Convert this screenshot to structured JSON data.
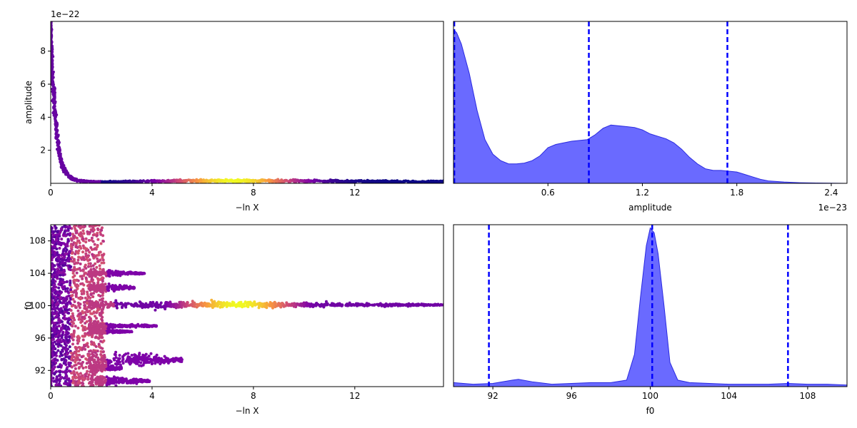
{
  "colors": {
    "trace_colormap": "plasma",
    "kde_fill": "#5555ff",
    "kde_edge": "#2a2ae0",
    "quantile_line": "#0000ff",
    "axes": "#000000"
  },
  "chart_data": [
    {
      "type": "scatter",
      "panel": "top-left",
      "xlabel": "−ln X",
      "ylabel": "amplitude",
      "offset_label": "1e−22",
      "xlim": [
        0,
        15.5
      ],
      "ylim": [
        0,
        9.8
      ],
      "xticks": [
        0,
        4,
        8,
        12
      ],
      "xtick_labels": [
        "0",
        "4",
        "8",
        "12"
      ],
      "yticks": [
        2,
        4,
        6,
        8
      ],
      "ytick_labels": [
        "2",
        "4",
        "6",
        "8"
      ],
      "color_by": "posterior weight (plasma colormap)",
      "curve": {
        "x": [
          0,
          0.05,
          0.1,
          0.15,
          0.2,
          0.3,
          0.4,
          0.5,
          0.7,
          0.9,
          1.2,
          1.6,
          2.0,
          3.0,
          4.0,
          5.0,
          6.0,
          7.0,
          8.0,
          9.0,
          10.0,
          11.0,
          12.0,
          13.0,
          14.0,
          15.5
        ],
        "y": [
          9.5,
          7.2,
          5.9,
          4.8,
          3.6,
          2.3,
          1.4,
          0.9,
          0.45,
          0.25,
          0.15,
          0.1,
          0.08,
          0.1,
          0.12,
          0.14,
          0.15,
          0.15,
          0.15,
          0.15,
          0.14,
          0.13,
          0.12,
          0.11,
          0.1,
          0.1
        ]
      }
    },
    {
      "type": "area",
      "panel": "top-right",
      "xlabel": "amplitude",
      "offset_label": "1e−23",
      "xlim": [
        0,
        2.5
      ],
      "ylim": [
        0,
        1.0
      ],
      "xticks": [
        0.6,
        1.2,
        1.8,
        2.4
      ],
      "xtick_labels": [
        "0.6",
        "1.2",
        "1.8",
        "2.4"
      ],
      "y_axis_ticks": "none",
      "quantiles": [
        0.005,
        0.86,
        1.74
      ],
      "x": [
        0,
        0.02,
        0.05,
        0.1,
        0.15,
        0.2,
        0.25,
        0.3,
        0.35,
        0.4,
        0.45,
        0.5,
        0.55,
        0.6,
        0.65,
        0.7,
        0.75,
        0.8,
        0.85,
        0.9,
        0.95,
        1.0,
        1.05,
        1.1,
        1.15,
        1.2,
        1.25,
        1.3,
        1.35,
        1.4,
        1.45,
        1.5,
        1.55,
        1.6,
        1.65,
        1.7,
        1.75,
        1.8,
        1.85,
        1.9,
        1.95,
        2.0,
        2.1,
        2.2,
        2.3,
        2.4,
        2.5
      ],
      "y": [
        0.95,
        0.93,
        0.86,
        0.68,
        0.45,
        0.27,
        0.18,
        0.14,
        0.12,
        0.12,
        0.125,
        0.14,
        0.17,
        0.22,
        0.24,
        0.25,
        0.26,
        0.265,
        0.27,
        0.3,
        0.34,
        0.36,
        0.355,
        0.35,
        0.345,
        0.33,
        0.305,
        0.29,
        0.275,
        0.25,
        0.21,
        0.16,
        0.12,
        0.09,
        0.08,
        0.08,
        0.075,
        0.07,
        0.055,
        0.04,
        0.025,
        0.015,
        0.008,
        0.004,
        0.002,
        0.001,
        0.0
      ]
    },
    {
      "type": "scatter",
      "panel": "bottom-left",
      "xlabel": "−ln X",
      "ylabel": "f0",
      "xlim": [
        0,
        15.5
      ],
      "ylim": [
        90,
        110
      ],
      "xticks": [
        0,
        4,
        8,
        12
      ],
      "xtick_labels": [
        "0",
        "4",
        "8",
        "12"
      ],
      "yticks": [
        92,
        96,
        100,
        104,
        108
      ],
      "ytick_labels": [
        "92",
        "96",
        "100",
        "104",
        "108"
      ],
      "color_by": "posterior weight (plasma colormap)",
      "lanes": [
        {
          "y": 100.1,
          "x_end": 15.5,
          "spread": 0.25
        },
        {
          "y": 93.3,
          "x_end": 5.2,
          "spread": 0.6
        },
        {
          "y": 104.0,
          "x_end": 3.7,
          "spread": 0.2
        },
        {
          "y": 102.2,
          "x_end": 3.3,
          "spread": 0.3
        },
        {
          "y": 97.5,
          "x_end": 4.2,
          "spread": 0.2
        },
        {
          "y": 96.8,
          "x_end": 3.2,
          "spread": 0.2
        },
        {
          "y": 90.7,
          "x_end": 3.9,
          "spread": 0.35
        },
        {
          "y": 92.3,
          "x_end": 2.8,
          "spread": 0.3
        }
      ]
    },
    {
      "type": "area",
      "panel": "bottom-right",
      "xlabel": "f0",
      "xlim": [
        90,
        110
      ],
      "ylim": [
        0,
        1.0
      ],
      "xticks": [
        92,
        96,
        100,
        104,
        108
      ],
      "xtick_labels": [
        "92",
        "96",
        "100",
        "104",
        "108"
      ],
      "y_axis_ticks": "none",
      "quantiles": [
        91.8,
        100.1,
        107.0
      ],
      "x": [
        90,
        91,
        92,
        93,
        93.3,
        94,
        95,
        96,
        97,
        98,
        98.8,
        99.2,
        99.5,
        99.8,
        100.0,
        100.2,
        100.4,
        100.7,
        101.0,
        101.4,
        102,
        103,
        104,
        105,
        106,
        107,
        108,
        109,
        110
      ],
      "y": [
        0.025,
        0.015,
        0.02,
        0.04,
        0.045,
        0.03,
        0.015,
        0.02,
        0.025,
        0.025,
        0.04,
        0.2,
        0.55,
        0.87,
        0.98,
        0.95,
        0.82,
        0.5,
        0.15,
        0.04,
        0.025,
        0.02,
        0.015,
        0.015,
        0.015,
        0.02,
        0.015,
        0.015,
        0.01
      ]
    }
  ]
}
